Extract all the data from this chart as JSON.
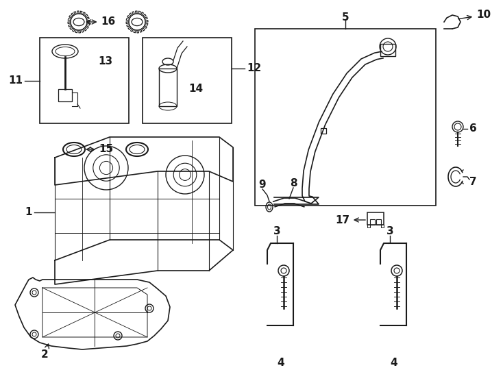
{
  "bg_color": "#ffffff",
  "line_color": "#1a1a1a",
  "fig_width": 7.34,
  "fig_height": 5.4,
  "dpi": 100,
  "lw": 1.3,
  "thin": 0.7,
  "thick": 2.0
}
